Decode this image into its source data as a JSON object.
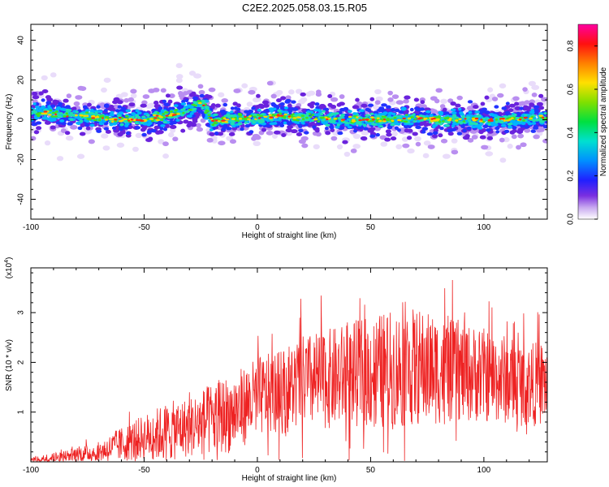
{
  "title": "C2E2.2025.058.03.15.R05",
  "chart_data": [
    {
      "type": "heatmap",
      "name": "spectrogram",
      "xlabel": "Height of straight line (km)",
      "ylabel": "Frequency (Hz)",
      "xlim": [
        -100,
        128
      ],
      "ylim": [
        -50,
        48
      ],
      "xticks": [
        -100,
        -50,
        0,
        50,
        100
      ],
      "yticks": [
        -40,
        -20,
        0,
        20,
        40
      ],
      "colorbar": {
        "label": "Normalized spectral amplitude",
        "range": [
          0.0,
          0.9
        ],
        "ticks": [
          0.0,
          0.2,
          0.4,
          0.6,
          0.8
        ]
      },
      "ridge": {
        "x": [
          -100,
          -90,
          -80,
          -70,
          -60,
          -50,
          -40,
          -30,
          -25,
          -22,
          -20,
          -10,
          0,
          10,
          20,
          30,
          40,
          50,
          60,
          70,
          80,
          90,
          100,
          110,
          120,
          128
        ],
        "center_hz": [
          4,
          3,
          2,
          1,
          0,
          0,
          2,
          5,
          8,
          5,
          -1,
          1,
          1,
          2,
          1,
          1,
          0,
          0,
          0,
          1,
          0,
          0,
          0,
          0,
          1,
          1
        ]
      }
    },
    {
      "type": "line",
      "name": "snr",
      "xlabel": "Height of straight line (km)",
      "ylabel": "SNR (10 * v/v)",
      "multiplier": "(x10",
      "multiplier_exp": "4",
      "multiplier_close": ")",
      "xlim": [
        -100,
        128
      ],
      "ylim": [
        0,
        3.9
      ],
      "xticks": [
        -100,
        -50,
        0,
        50,
        100
      ],
      "yticks": [
        1,
        2,
        3
      ],
      "color": "#ee2222",
      "envelope": {
        "x": [
          -100,
          -90,
          -80,
          -70,
          -60,
          -50,
          -40,
          -30,
          -20,
          -10,
          0,
          10,
          20,
          30,
          40,
          50,
          60,
          70,
          80,
          90,
          100,
          110,
          120,
          128
        ],
        "mean": [
          0.05,
          0.08,
          0.15,
          0.2,
          0.35,
          0.5,
          0.6,
          0.7,
          0.85,
          1.0,
          1.3,
          1.4,
          1.6,
          1.65,
          1.75,
          1.8,
          1.85,
          1.9,
          1.85,
          1.8,
          1.75,
          1.65,
          1.55,
          1.6
        ],
        "amp": [
          0.05,
          0.1,
          0.15,
          0.2,
          0.35,
          0.45,
          0.6,
          0.6,
          0.75,
          0.8,
          0.8,
          0.85,
          0.95,
          1.0,
          1.05,
          1.15,
          1.2,
          1.2,
          1.1,
          1.0,
          0.95,
          0.9,
          0.85,
          0.85
        ]
      }
    }
  ]
}
